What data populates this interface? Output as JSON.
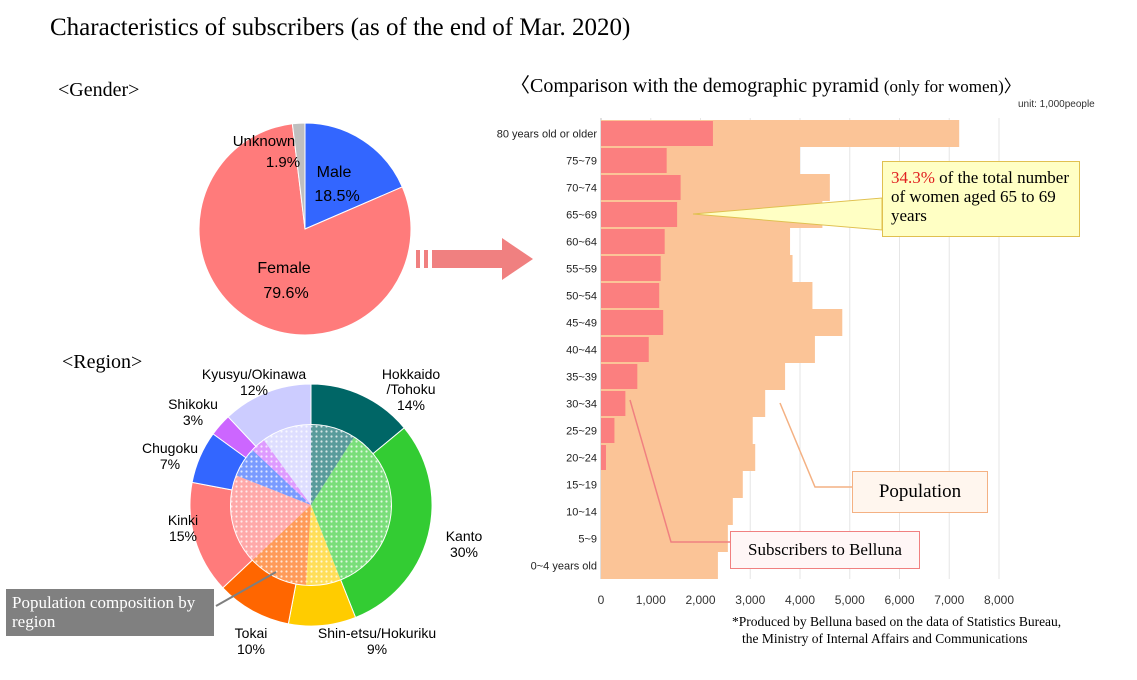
{
  "title": "Characteristics  of subscribers  (as of the end of Mar. 2020)",
  "gender": {
    "heading": "<Gender>",
    "labels": {
      "unknown": "Unknown",
      "unknown_pct": "1.9%",
      "male": "Male",
      "male_pct": "18.5%",
      "female": "Female",
      "female_pct": "79.6%"
    }
  },
  "region": {
    "heading": "<Region>",
    "callout": "Population composition by region",
    "labels": [
      {
        "line1": "Hokkaido",
        "line2": "/Tohoku",
        "pct": "14%"
      },
      {
        "line1": "Kanto",
        "pct": "30%"
      },
      {
        "line1": "Shin-etsu/Hokuriku",
        "pct": "9%"
      },
      {
        "line1": "Tokai",
        "pct": "10%"
      },
      {
        "line1": "Kinki",
        "pct": "15%"
      },
      {
        "line1": "Chugoku",
        "pct": "7%"
      },
      {
        "line1": "Shikoku",
        "pct": "3%"
      },
      {
        "line1": "Kyusyu/Okinawa",
        "pct": "12%"
      }
    ]
  },
  "pyramid": {
    "heading_main": "〈Comparison with the demographic pyramid ",
    "heading_small": "(only for women)〉",
    "unit": "unit: 1,000people",
    "callout_pct": "34.3%",
    "callout_rest": " of the total number of women aged 65 to 69 years",
    "population_label": "Population",
    "subscribers_label": "Subscribers to Belluna",
    "footnote_1": "*Produced by Belluna  based on the data of Statistics Bureau,",
    "footnote_2": "the Ministry  of Internal Affairs and Communications"
  },
  "chart_data": [
    {
      "type": "pie",
      "title": "<Gender>",
      "categories": [
        "Male",
        "Female",
        "Unknown"
      ],
      "values": [
        18.5,
        79.6,
        1.9
      ],
      "colors": [
        "#3366ff",
        "#ff7b7b",
        "#bfbfbf"
      ]
    },
    {
      "type": "pie",
      "title": "<Region>",
      "categories": [
        "Hokkaido/Tohoku",
        "Kanto",
        "Shin-etsu/Hokuriku",
        "Tokai",
        "Kinki",
        "Chugoku",
        "Shikoku",
        "Kyusyu/Okinawa"
      ],
      "series": [
        {
          "name": "subscribers",
          "values": [
            14,
            30,
            9,
            10,
            15,
            7,
            3,
            12
          ]
        },
        {
          "name": "Population composition by region",
          "values": [
            9,
            35,
            7,
            12,
            18,
            6,
            3,
            10
          ]
        }
      ],
      "colors": [
        "#006666",
        "#33cc33",
        "#ffcc00",
        "#ff6600",
        "#ff7b7b",
        "#3366ff",
        "#cc66ff",
        "#ccccff"
      ]
    },
    {
      "type": "bar",
      "orientation": "horizontal",
      "title": "Comparison with the demographic pyramid (only for women)",
      "categories": [
        "80 years old or older",
        "75~79",
        "70~74",
        "65~69",
        "60~64",
        "55~59",
        "50~54",
        "45~49",
        "40~44",
        "35~39",
        "30~34",
        "25~29",
        "20~24",
        "15~19",
        "10~14",
        "5~9",
        "0~4 years old"
      ],
      "series": [
        {
          "name": "Population",
          "values": [
            7200,
            4000,
            4600,
            4450,
            3800,
            3850,
            4250,
            4850,
            4300,
            3700,
            3300,
            3050,
            3100,
            2850,
            2650,
            2550,
            2350
          ]
        },
        {
          "name": "Subscribers to Belluna",
          "values": [
            2250,
            1320,
            1600,
            1530,
            1280,
            1200,
            1170,
            1250,
            960,
            730,
            490,
            270,
            100,
            0,
            0,
            0,
            0
          ]
        }
      ],
      "xlim": [
        0,
        8000
      ],
      "xticks": [
        "0",
        "1,000",
        "2,000",
        "3,000",
        "4,000",
        "5,000",
        "6,000",
        "7,000",
        "8,000"
      ],
      "colors": [
        "#fbc497",
        "#fb7f7f"
      ],
      "grid": true
    }
  ]
}
